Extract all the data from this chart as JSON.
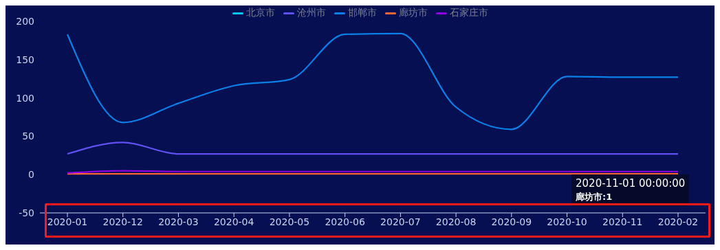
{
  "chart_data": {
    "type": "line",
    "categories": [
      "2020-01",
      "2020-12",
      "2020-03",
      "2020-04",
      "2020-05",
      "2020-06",
      "2020-07",
      "2020-08",
      "2020-09",
      "2020-10",
      "2020-11",
      "2020-02"
    ],
    "series": [
      {
        "name": "北京市",
        "color": "#00c8f0",
        "values": [
          null,
          null,
          null,
          null,
          null,
          null,
          null,
          null,
          null,
          null,
          null,
          null
        ]
      },
      {
        "name": "沧州市",
        "color": "#6050f0",
        "values": [
          27,
          42,
          27,
          27,
          27,
          27,
          27,
          27,
          27,
          27,
          27,
          27
        ]
      },
      {
        "name": "邯郸市",
        "color": "#0a80e8",
        "values": [
          183,
          68,
          93,
          116,
          124,
          183,
          184,
          88,
          59,
          128,
          127,
          127
        ]
      },
      {
        "name": "廊坊市",
        "color": "#ff6633",
        "values": [
          1,
          1,
          1,
          1,
          1,
          1,
          1,
          1,
          1,
          1,
          1,
          1
        ]
      },
      {
        "name": "石家庄市",
        "color": "#9000e0",
        "values": [
          2,
          5,
          4,
          4,
          4,
          4,
          4,
          4,
          4,
          4,
          4,
          4
        ]
      }
    ],
    "ylim": [
      -50,
      200
    ],
    "yticks": [
      -50,
      0,
      50,
      100,
      150,
      200
    ],
    "grid": false,
    "legend": "top",
    "marker": "none",
    "line_style": "solid",
    "annotations": [
      "2020-11-01 00:00:00",
      "廊坊市:1"
    ]
  }
}
